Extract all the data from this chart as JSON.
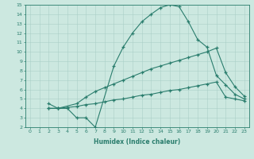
{
  "xlabel": "Humidex (Indice chaleur)",
  "xlim": [
    -0.5,
    23.5
  ],
  "ylim": [
    2,
    15
  ],
  "yticks": [
    2,
    3,
    4,
    5,
    6,
    7,
    8,
    9,
    10,
    11,
    12,
    13,
    14,
    15
  ],
  "xticks": [
    0,
    1,
    2,
    3,
    4,
    5,
    6,
    7,
    8,
    9,
    10,
    11,
    12,
    13,
    14,
    15,
    16,
    17,
    18,
    19,
    20,
    21,
    22,
    23
  ],
  "line_color": "#2a7d6d",
  "bg_color": "#cce8e0",
  "grid_color": "#aacfc7",
  "line1_x": [
    2,
    3,
    4,
    5,
    6,
    7,
    9,
    10,
    11,
    12,
    13,
    14,
    15,
    16,
    17,
    18,
    19,
    20,
    21,
    22,
    23
  ],
  "line1_y": [
    4.5,
    4.0,
    4.0,
    3.0,
    3.0,
    2.0,
    8.5,
    10.5,
    12.0,
    13.2,
    14.0,
    14.7,
    15.0,
    14.8,
    13.2,
    11.3,
    10.5,
    7.5,
    6.5,
    5.5,
    5.0
  ],
  "line2_x": [
    2,
    3,
    5,
    6,
    7,
    8,
    9,
    10,
    11,
    12,
    13,
    14,
    15,
    16,
    17,
    18,
    19,
    20,
    21,
    22,
    23
  ],
  "line2_y": [
    4.0,
    4.0,
    4.5,
    5.2,
    5.8,
    6.2,
    6.6,
    7.0,
    7.4,
    7.8,
    8.2,
    8.5,
    8.8,
    9.1,
    9.4,
    9.7,
    10.0,
    10.4,
    7.8,
    6.3,
    5.3
  ],
  "line3_x": [
    2,
    3,
    4,
    5,
    6,
    7,
    8,
    9,
    10,
    11,
    12,
    13,
    14,
    15,
    16,
    17,
    18,
    19,
    20,
    21,
    22,
    23
  ],
  "line3_y": [
    4.0,
    4.0,
    4.1,
    4.2,
    4.4,
    4.5,
    4.7,
    4.9,
    5.0,
    5.2,
    5.4,
    5.5,
    5.7,
    5.9,
    6.0,
    6.2,
    6.4,
    6.6,
    6.8,
    5.2,
    5.0,
    4.8
  ]
}
